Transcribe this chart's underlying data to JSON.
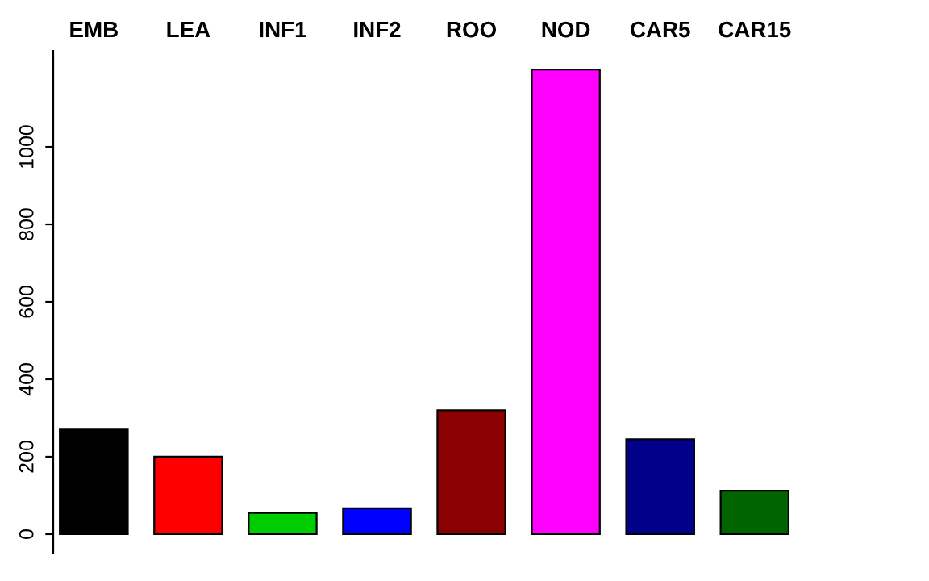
{
  "chart_data": {
    "type": "bar",
    "categories": [
      "EMB",
      "LEA",
      "INF1",
      "INF2",
      "ROO",
      "NOD",
      "CAR5",
      "CAR15"
    ],
    "values": [
      270,
      200,
      55,
      67,
      320,
      1200,
      245,
      112
    ],
    "colors": [
      "#000000",
      "#ff0000",
      "#00cd00",
      "#0000ff",
      "#8b0000",
      "#ff00ff",
      "#00008b",
      "#006400"
    ],
    "ylim": [
      -48,
      1248
    ],
    "yticks": [
      0,
      200,
      400,
      600,
      800,
      1000
    ],
    "grid": false
  }
}
